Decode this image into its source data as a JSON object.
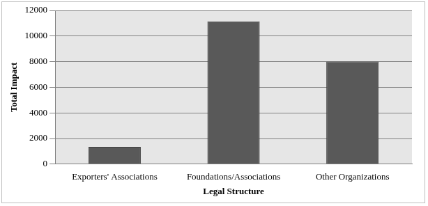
{
  "chart_data": {
    "type": "bar",
    "x_label": "Legal Structure",
    "y_label": "Total Impact",
    "categories": [
      "Exporters' Associations",
      "Foundations/Associations",
      "Other Organizations"
    ],
    "values": [
      1350,
      11150,
      8000
    ],
    "color": "#595959",
    "ylim": [
      0,
      12000
    ],
    "yticks": [
      0,
      2000,
      4000,
      6000,
      8000,
      10000,
      12000
    ],
    "grid": true
  }
}
